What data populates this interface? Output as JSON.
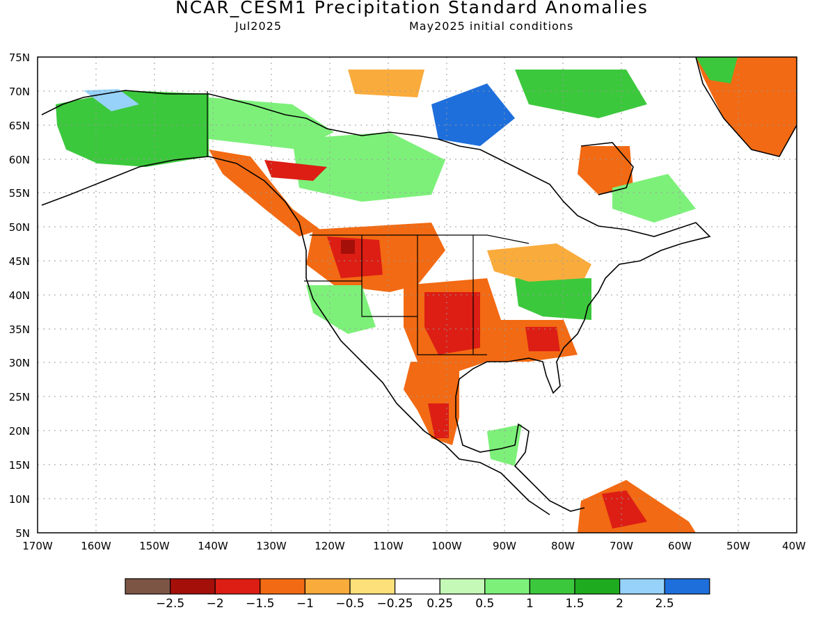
{
  "header": {
    "title": "NCAR_CESM1 Precipitation Standard Anomalies",
    "valid_month": "Jul2025",
    "init": "May2025 initial conditions"
  },
  "map": {
    "lat_labels": [
      "75N",
      "70N",
      "65N",
      "60N",
      "55N",
      "50N",
      "45N",
      "40N",
      "35N",
      "30N",
      "25N",
      "20N",
      "15N",
      "10N",
      "5N"
    ],
    "lon_labels": [
      "170W",
      "160W",
      "150W",
      "140W",
      "130W",
      "120W",
      "110W",
      "100W",
      "90W",
      "80W",
      "70W",
      "60W",
      "50W",
      "40W"
    ]
  },
  "colorbar": {
    "colors": [
      "#7d5545",
      "#a50f0a",
      "#dc1e14",
      "#f26a13",
      "#f9ab3c",
      "#fde07a",
      "#ffffff",
      "#c5f9b8",
      "#7df07a",
      "#3cc83c",
      "#1fab1f",
      "#96d2fa",
      "#1e6fdc"
    ],
    "labels": [
      "−2.5",
      "−2",
      "−1.5",
      "−1",
      "−0.5",
      "−0.25",
      "0.25",
      "0.5",
      "1",
      "1.5",
      "2",
      "2.5"
    ]
  }
}
